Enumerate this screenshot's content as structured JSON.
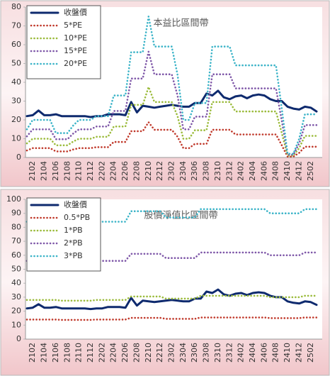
{
  "chart_data": [
    {
      "type": "line",
      "title": "本益比區間帶",
      "categories": [
        null,
        "2102",
        null,
        "2104",
        null,
        "2106",
        null,
        "2108",
        null,
        "2110",
        null,
        "2112",
        null,
        "2202",
        null,
        "2204",
        null,
        "2206",
        null,
        "2208",
        null,
        "2210",
        null,
        "2212",
        null,
        "2302",
        null,
        "2304",
        null,
        "2306",
        null,
        "2308",
        null,
        "2310",
        null,
        "2312",
        null,
        "2402",
        null,
        "2404",
        null,
        "2406",
        null,
        "2408",
        null,
        "2410",
        null,
        "2412",
        null,
        "2502",
        null
      ],
      "ylim": [
        0,
        80
      ],
      "yticks": [
        0,
        10,
        20,
        30,
        40,
        50,
        60,
        70,
        80
      ],
      "grid": false,
      "legend": "upper left",
      "series": [
        {
          "name": "收盤價",
          "color": "#0e2a6e",
          "style": "solid",
          "values": [
            22,
            22.5,
            25,
            22.5,
            22.5,
            23,
            22,
            22,
            22,
            22,
            22,
            21.5,
            22,
            22,
            23,
            23,
            23,
            22.5,
            29.5,
            24,
            27.5,
            27,
            26.5,
            27,
            27.5,
            28,
            27.5,
            27,
            27,
            29,
            29,
            34,
            33,
            35.5,
            32,
            31,
            32.5,
            33,
            31.5,
            33,
            33.5,
            33,
            31,
            30,
            30,
            27,
            26,
            25.5,
            27,
            26.5,
            24.5
          ]
        },
        {
          "name": "5*PE",
          "color": "#c0392b",
          "style": "dotted",
          "values": [
            3.75,
            5,
            5,
            5,
            5,
            3.25,
            3.25,
            3.25,
            4.25,
            5,
            5,
            5,
            5.5,
            5.5,
            5.5,
            8.25,
            8.25,
            8.25,
            14,
            14,
            14,
            18.75,
            14.75,
            14.75,
            14.75,
            14.75,
            11,
            5,
            5,
            7.25,
            7.25,
            7.25,
            14.75,
            14.75,
            14.75,
            14.75,
            12.25,
            12.25,
            12.25,
            12.25,
            12.25,
            12.25,
            12.25,
            12.25,
            6.5,
            0.5,
            0.5,
            2.5,
            5.75,
            5.75,
            5.75
          ]
        },
        {
          "name": "10*PE",
          "color": "#9bbb3b",
          "style": "dotted",
          "values": [
            7.5,
            10,
            10,
            10,
            10,
            6.5,
            6.5,
            6.5,
            8.5,
            10,
            10,
            10,
            11,
            11,
            11,
            16.5,
            16.5,
            16.5,
            28,
            28,
            28,
            37.5,
            29.5,
            29.5,
            29.5,
            29.5,
            22,
            10,
            10,
            14.5,
            14.5,
            14.5,
            29.5,
            29.5,
            29.5,
            29.5,
            24.5,
            24.5,
            24.5,
            24.5,
            24.5,
            24.5,
            24.5,
            24.5,
            13,
            1,
            1,
            5,
            11.5,
            11.5,
            11.5
          ]
        },
        {
          "name": "15*PE",
          "color": "#7e57a8",
          "style": "dotted",
          "values": [
            11.25,
            15,
            15,
            15,
            15,
            9.75,
            9.75,
            9.75,
            12.75,
            15,
            15,
            15,
            16.5,
            16.5,
            16.5,
            24.75,
            24.75,
            24.75,
            42,
            42,
            42,
            56.25,
            44.25,
            44.25,
            44.25,
            44.25,
            33,
            15,
            15,
            21.75,
            21.75,
            21.75,
            44.25,
            44.25,
            44.25,
            44.25,
            36.75,
            36.75,
            36.75,
            36.75,
            36.75,
            36.75,
            36.75,
            36.75,
            19.5,
            1.5,
            1.5,
            7.5,
            17.25,
            17.25,
            17.25
          ]
        },
        {
          "name": "20*PE",
          "color": "#3cb4c8",
          "style": "dotted",
          "values": [
            15,
            20,
            20,
            20,
            20,
            13,
            13,
            13,
            17,
            20,
            20,
            20,
            22,
            22,
            22,
            33,
            33,
            33,
            56,
            56,
            56,
            75,
            59,
            59,
            59,
            59,
            44,
            20,
            20,
            29,
            29,
            29,
            59,
            59,
            59,
            59,
            49,
            49,
            49,
            49,
            49,
            49,
            49,
            49,
            26,
            2,
            2,
            10,
            23,
            23,
            23
          ]
        }
      ]
    },
    {
      "type": "line",
      "title": "股價淨值比區間帶",
      "categories": [
        null,
        "2102",
        null,
        "2104",
        null,
        "2106",
        null,
        "2108",
        null,
        "2110",
        null,
        "2112",
        null,
        "2202",
        null,
        "2204",
        null,
        "2206",
        null,
        "2208",
        null,
        "2210",
        null,
        "2212",
        null,
        "2302",
        null,
        "2304",
        null,
        "2306",
        null,
        "2308",
        null,
        "2310",
        null,
        "2312",
        null,
        "2402",
        null,
        "2404",
        null,
        "2406",
        null,
        "2408",
        null,
        "2410",
        null,
        "2412",
        null,
        "2502",
        null
      ],
      "ylim": [
        0,
        100
      ],
      "yticks": [
        0,
        10,
        20,
        30,
        40,
        50,
        60,
        70,
        80,
        90,
        100
      ],
      "grid": false,
      "legend": "upper left",
      "series": [
        {
          "name": "收盤價",
          "color": "#0e2a6e",
          "style": "solid",
          "values": [
            22,
            22.5,
            25,
            22.5,
            22.5,
            23,
            22,
            22,
            22,
            22,
            22,
            21.5,
            22,
            22,
            23,
            23,
            23,
            22.5,
            29.5,
            24,
            27.5,
            27,
            26.5,
            27,
            27.5,
            28,
            27.5,
            27,
            27,
            29,
            29,
            34,
            33,
            35.5,
            32,
            31,
            32.5,
            33,
            31.5,
            33,
            33.5,
            33,
            31,
            30,
            30,
            27,
            26,
            25.5,
            27,
            26.5,
            24.5
          ]
        },
        {
          "name": "0.5*PB",
          "color": "#c0392b",
          "style": "dotted",
          "values": [
            14,
            14,
            14,
            14,
            14,
            14,
            13.75,
            13.75,
            13.75,
            13.75,
            13.75,
            13.75,
            14,
            14,
            14,
            14,
            14,
            14,
            15.25,
            15.25,
            15.25,
            15.25,
            15.25,
            15.25,
            14.5,
            14.5,
            14.5,
            14.5,
            14.5,
            14.5,
            15.5,
            15.5,
            15.5,
            15.5,
            15.5,
            15.5,
            15.5,
            15.5,
            15.5,
            15.5,
            15.5,
            15.5,
            15,
            15,
            15,
            15,
            15,
            15,
            15.5,
            15.5,
            15.5
          ]
        },
        {
          "name": "1*PB",
          "color": "#9bbb3b",
          "style": "dotted",
          "values": [
            28,
            28,
            28,
            28,
            28,
            28,
            27.5,
            27.5,
            27.5,
            27.5,
            27.5,
            27.5,
            28,
            28,
            28,
            28,
            28,
            28,
            30.5,
            30.5,
            30.5,
            30.5,
            30.5,
            30.5,
            29,
            29,
            29,
            29,
            29,
            29,
            31,
            31,
            31,
            31,
            31,
            31,
            31,
            31,
            31,
            31,
            31,
            31,
            30,
            30,
            30,
            30,
            30,
            30,
            31,
            31,
            31
          ]
        },
        {
          "name": "2*PB",
          "color": "#7e57a8",
          "style": "dotted",
          "values": [
            56,
            56,
            56,
            56,
            56,
            56,
            55,
            55,
            55,
            55,
            55,
            55,
            56,
            56,
            56,
            56,
            56,
            56,
            61,
            61,
            61,
            61,
            61,
            61,
            58,
            58,
            58,
            58,
            58,
            58,
            62,
            62,
            62,
            62,
            62,
            62,
            62,
            62,
            62,
            62,
            62,
            62,
            60,
            60,
            60,
            60,
            60,
            60,
            62,
            62,
            62
          ]
        },
        {
          "name": "3*PB",
          "color": "#3cb4c8",
          "style": "dotted",
          "values": [
            84,
            84,
            84,
            84,
            84,
            84,
            82.5,
            82.5,
            82.5,
            82.5,
            82.5,
            82.5,
            84,
            84,
            84,
            84,
            84,
            84,
            91.5,
            91.5,
            91.5,
            91.5,
            91.5,
            91.5,
            87,
            87,
            87,
            87,
            87,
            87,
            93,
            93,
            93,
            93,
            93,
            93,
            93,
            93,
            93,
            93,
            93,
            93,
            90,
            90,
            90,
            90,
            90,
            90,
            93,
            93,
            93
          ]
        }
      ]
    }
  ]
}
